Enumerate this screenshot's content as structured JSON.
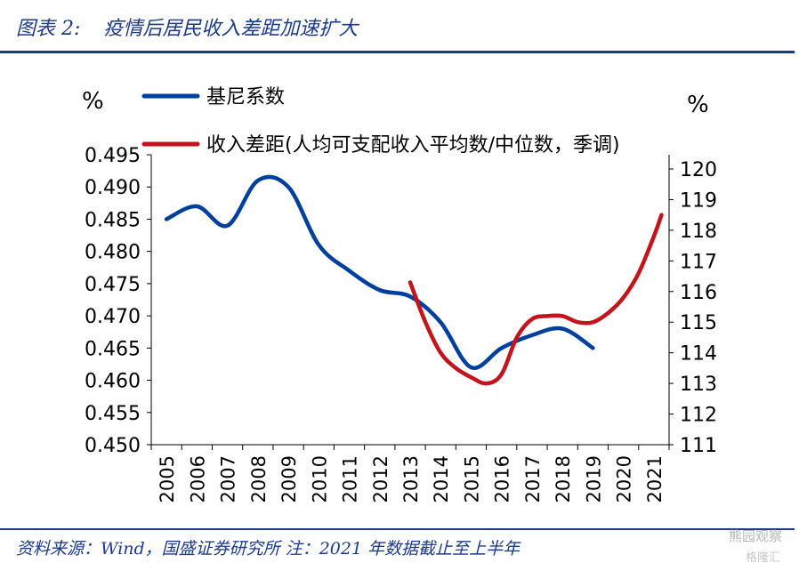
{
  "header": {
    "figure_no": "图表 2:",
    "title": "疫情后居民收入差距加速扩大"
  },
  "footer": {
    "source": "资料来源：Wind，国盛证券研究所 注：2021 年数据截止至上半年",
    "watermark": "熊园观察",
    "watermark2": "格隆汇"
  },
  "colors": {
    "gini": "#003f9e",
    "gap": "#c4141b",
    "title": "#1a3a8a"
  },
  "chart_data": {
    "type": "line",
    "categories": [
      "2005",
      "2006",
      "2007",
      "2008",
      "2009",
      "2010",
      "2011",
      "2012",
      "2013",
      "2014",
      "2015",
      "2016",
      "2017",
      "2018",
      "2019",
      "2020",
      "2021"
    ],
    "left_axis": {
      "unit": "%",
      "ylim": [
        0.45,
        0.495
      ],
      "ticks": [
        "0.450",
        "0.455",
        "0.460",
        "0.465",
        "0.470",
        "0.475",
        "0.480",
        "0.485",
        "0.490",
        "0.495"
      ]
    },
    "right_axis": {
      "unit": "%",
      "ylim": [
        111,
        120
      ],
      "ticks": [
        "111",
        "112",
        "113",
        "114",
        "115",
        "116",
        "117",
        "118",
        "119",
        "120"
      ]
    },
    "legend_placement": "top-left",
    "grid": false,
    "series": [
      {
        "name": "基尼系数",
        "axis": "left",
        "color": "#003f9e",
        "x": [
          2005,
          2006,
          2007,
          2008,
          2009,
          2010,
          2011,
          2012,
          2013,
          2014,
          2015,
          2016,
          2017,
          2018,
          2019
        ],
        "values": [
          0.485,
          0.487,
          0.484,
          0.491,
          0.49,
          0.481,
          0.477,
          0.474,
          0.473,
          0.469,
          0.462,
          0.465,
          0.467,
          0.468,
          0.465
        ]
      },
      {
        "name": "收入差距(人均可支配收入平均数/中位数，季调)",
        "axis": "right",
        "color": "#c4141b",
        "x": [
          2013.0,
          2013.5,
          2014.0,
          2014.5,
          2015.0,
          2015.5,
          2016.0,
          2016.5,
          2017.0,
          2017.5,
          2018.0,
          2018.5,
          2019.0,
          2019.5,
          2020.0,
          2020.5,
          2021.0,
          2021.25
        ],
        "values": [
          116.3,
          115.0,
          114.0,
          113.5,
          113.2,
          113.0,
          113.3,
          114.5,
          115.1,
          115.2,
          115.2,
          115.0,
          115.0,
          115.3,
          115.8,
          116.6,
          117.8,
          118.5
        ]
      }
    ]
  }
}
